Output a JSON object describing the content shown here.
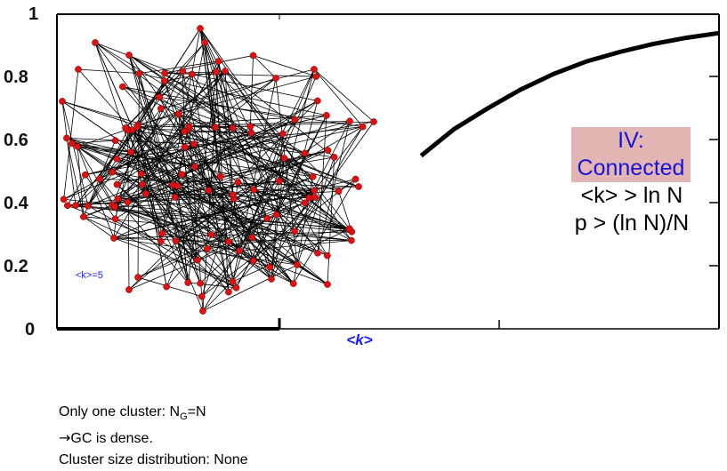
{
  "chart_data": {
    "type": "line",
    "y_ticks": [
      "1",
      "0.8",
      "0.6",
      "0.4",
      "0.2",
      "0"
    ],
    "ylim": [
      0,
      1
    ],
    "xlabel": "<k>",
    "series": [
      {
        "x": [
          0.55,
          0.6,
          0.65,
          0.7,
          0.75,
          0.8,
          0.85,
          0.9,
          0.95,
          1.0
        ],
        "y": [
          0.55,
          0.635,
          0.7,
          0.76,
          0.81,
          0.85,
          0.88,
          0.905,
          0.925,
          0.94
        ]
      }
    ]
  },
  "network": {
    "avg_degree_label": "<k>=5",
    "node_color": "#e01010",
    "edge_color": "#000000"
  },
  "regime": {
    "title_line1": "IV:",
    "title_line2": "Connected",
    "condition_1": "<k> >  ln N",
    "condition_2": "p > (ln N)/N",
    "highlight_color": "#e2b4b4"
  },
  "caption": {
    "line1_prefix": "Only one cluster: N",
    "line1_sub": "G",
    "line1_suffix": "=N",
    "line2_arrow": "→",
    "line2_text": "GC is dense.",
    "line3": "Cluster size distribution: None"
  }
}
